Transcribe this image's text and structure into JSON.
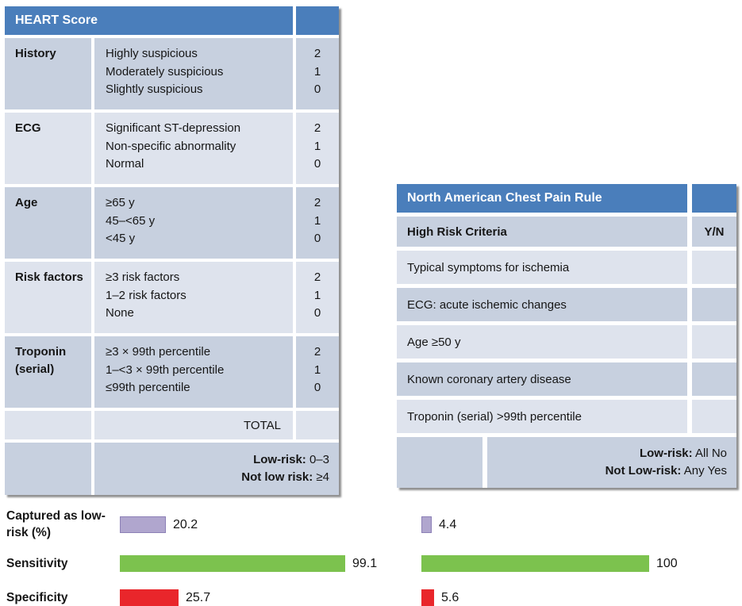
{
  "heart_table": {
    "title": "HEART Score",
    "rows": [
      {
        "label": "History",
        "options": [
          "Highly suspicious",
          "Moderately suspicious",
          "Slightly suspicious"
        ],
        "points": [
          "2",
          "1",
          "0"
        ]
      },
      {
        "label": "ECG",
        "options": [
          "Significant ST-depression",
          "Non-specific abnormality",
          "Normal"
        ],
        "points": [
          "2",
          "1",
          "0"
        ]
      },
      {
        "label": "Age",
        "options": [
          "≥65 y",
          "45–<65 y",
          "<45 y"
        ],
        "points": [
          "2",
          "1",
          "0"
        ]
      },
      {
        "label": "Risk factors",
        "options": [
          "≥3 risk factors",
          "1–2 risk factors",
          "None"
        ],
        "points": [
          "2",
          "1",
          "0"
        ]
      },
      {
        "label": "Troponin (serial)",
        "options": [
          "≥3 × 99th percentile",
          "1–<3 × 99th percentile",
          "≤99th percentile"
        ],
        "points": [
          "2",
          "1",
          "0"
        ]
      }
    ],
    "total_label": "TOTAL",
    "footer_lines": [
      {
        "bold": "Low-risk:",
        "rest": " 0–3"
      },
      {
        "bold": "Not low risk:",
        "rest": " ≥4"
      }
    ]
  },
  "nacpr_table": {
    "title": "North American Chest Pain Rule",
    "criteria_header": "High Risk Criteria",
    "yn_header": "Y/N",
    "criteria": [
      "Typical symptoms for ischemia",
      "ECG: acute ischemic changes",
      "Age ≥50 y",
      "Known coronary artery disease",
      "Troponin (serial) >99th percentile"
    ],
    "footer_lines": [
      {
        "bold": "Low-risk:",
        "rest": " All No"
      },
      {
        "bold": "Not Low-risk:",
        "rest": " Any Yes"
      }
    ]
  },
  "chart_data": {
    "type": "bar",
    "orientation": "horizontal",
    "categories": [
      "Captured as low-risk (%)",
      "Sensitivity",
      "Specificity"
    ],
    "series": [
      {
        "name": "HEART Score",
        "values": [
          20.2,
          99.1,
          25.7
        ]
      },
      {
        "name": "North American Chest Pain Rule",
        "values": [
          4.4,
          100,
          5.6
        ]
      }
    ],
    "value_labels": [
      [
        "20.2",
        "4.4"
      ],
      [
        "99.1",
        "100"
      ],
      [
        "25.7",
        "5.6"
      ]
    ],
    "xlim": [
      0,
      100
    ],
    "grid": false,
    "legend": "none",
    "category_colors": [
      "#B0A6CE",
      "#7CC24E",
      "#E9262B"
    ]
  },
  "colors": {
    "header_blue": "#4A7EBB",
    "row_dark": "#C7D0DF",
    "row_light": "#DEE3ED",
    "bar_purple": "#B0A6CE",
    "bar_purple_border": "#8C80B6",
    "bar_green": "#7CC24E",
    "bar_red": "#E9262B"
  }
}
